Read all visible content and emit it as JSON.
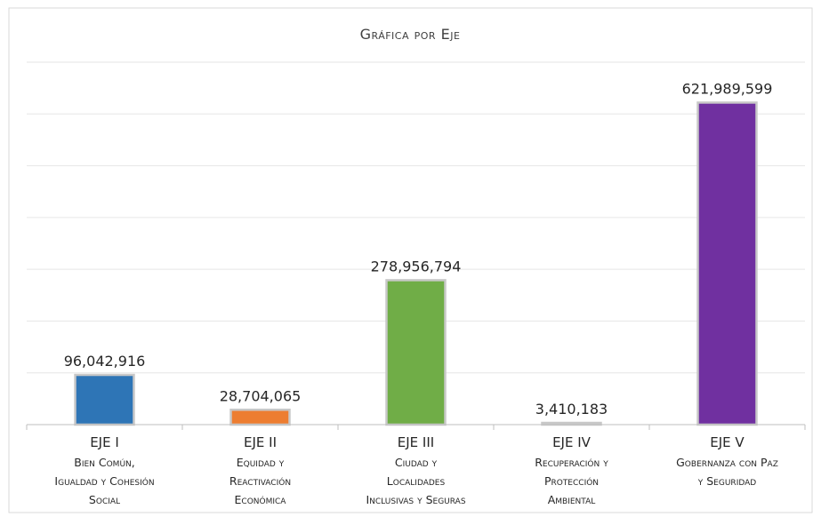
{
  "chart_data": {
    "type": "bar",
    "title": "Gráfica por Eje",
    "xlabel": "",
    "ylabel": "",
    "ylim": [
      0,
      700000000
    ],
    "grid": true,
    "legend": "none",
    "categories": [
      {
        "code": "EJE I",
        "lines": [
          "Bien Común,",
          "Igualdad y Cohesión",
          "Social"
        ]
      },
      {
        "code": "EJE II",
        "lines": [
          "Equidad y",
          "Reactivación",
          "Económica"
        ]
      },
      {
        "code": "EJE III",
        "lines": [
          "Ciudad y",
          "Localidades",
          "Inclusivas y Seguras"
        ]
      },
      {
        "code": "EJE IV",
        "lines": [
          "Recuperación y",
          "Protección",
          "Ambiental"
        ]
      },
      {
        "code": "EJE V",
        "lines": [
          "Gobernanza con Paz",
          "y Seguridad"
        ]
      }
    ],
    "values": [
      96042916,
      28704065,
      278956794,
      3410183,
      621989599
    ],
    "value_labels": [
      "96,042,916",
      "28,704,065",
      "278,956,794",
      "3,410,183",
      "621,989,599"
    ],
    "colors": [
      "#2e75b6",
      "#ed7d31",
      "#70ad47",
      "#a5a5a5",
      "#7030a0"
    ]
  }
}
